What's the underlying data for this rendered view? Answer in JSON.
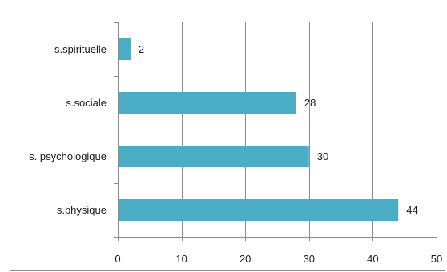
{
  "chart_data": {
    "type": "bar",
    "orientation": "horizontal",
    "categories": [
      "s.spirituelle",
      "s.sociale",
      "s. psychologique",
      "s.physique"
    ],
    "values": [
      2,
      28,
      30,
      44
    ],
    "xlim": [
      0,
      50
    ],
    "xticks": [
      0,
      10,
      20,
      30,
      40,
      50
    ],
    "grid": true,
    "bar_color": "#4bacc6",
    "grid_color": "#8c8c8c"
  }
}
